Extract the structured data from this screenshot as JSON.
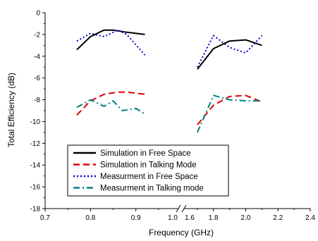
{
  "chart_data": {
    "type": "line",
    "xlabel": "Frequency (GHz)",
    "ylabel": "Total Efficiency (dB)",
    "ylim": [
      -18,
      0
    ],
    "x_axis_break": true,
    "x_segments": [
      {
        "range": [
          0.7,
          1.0
        ],
        "ticks": [
          "0.7",
          "0.8",
          "0.9",
          "1.0"
        ]
      },
      {
        "range": [
          1.6,
          2.4
        ],
        "ticks": [
          "1.6",
          "1.8",
          "2.0",
          "2.2",
          "2.4"
        ]
      }
    ],
    "y_ticks": [
      "0",
      "-2",
      "-4",
      "-6",
      "-8",
      "-10",
      "-12",
      "-14",
      "-16",
      "-18"
    ],
    "grid": false,
    "legend_position": "bottom-left",
    "series": [
      {
        "name": "Simulation in Free Space",
        "color": "#000000",
        "dash": "solid",
        "segments": [
          {
            "x": [
              0.77,
              0.8,
              0.83,
              0.85,
              0.88,
              0.92
            ],
            "y": [
              -3.4,
              -2.2,
              -1.6,
              -1.6,
              -1.8,
              -2.0
            ]
          },
          {
            "x": [
              1.7,
              1.8,
              1.9,
              2.0,
              2.1
            ],
            "y": [
              -5.2,
              -3.3,
              -2.6,
              -2.5,
              -3.0
            ]
          }
        ]
      },
      {
        "name": "Simulation in Talking Mode",
        "color": "#e00000",
        "dash": "dash",
        "segments": [
          {
            "x": [
              0.77,
              0.8,
              0.83,
              0.86,
              0.88,
              0.92
            ],
            "y": [
              -9.4,
              -8.1,
              -7.5,
              -7.3,
              -7.3,
              -7.5
            ]
          },
          {
            "x": [
              1.7,
              1.8,
              1.9,
              2.0,
              2.1
            ],
            "y": [
              -10.3,
              -8.5,
              -7.7,
              -7.6,
              -8.2
            ]
          }
        ]
      },
      {
        "name": "Measurment in Free Space",
        "color": "#0000cc",
        "dash": "dot",
        "segments": [
          {
            "x": [
              0.77,
              0.8,
              0.83,
              0.86,
              0.88,
              0.92
            ],
            "y": [
              -2.6,
              -1.9,
              -2.2,
              -1.6,
              -2.0,
              -3.9
            ]
          },
          {
            "x": [
              1.7,
              1.8,
              1.9,
              2.0,
              2.05,
              2.1
            ],
            "y": [
              -5.0,
              -2.1,
              -3.2,
              -3.7,
              -2.9,
              -2.1
            ]
          }
        ]
      },
      {
        "name": "Measurment in Talking mode",
        "color": "#008080",
        "dash": "dashdot",
        "segments": [
          {
            "x": [
              0.77,
              0.8,
              0.83,
              0.85,
              0.87,
              0.9,
              0.92
            ],
            "y": [
              -8.7,
              -8.0,
              -8.6,
              -8.1,
              -9.0,
              -8.8,
              -9.3
            ]
          },
          {
            "x": [
              1.7,
              1.8,
              1.9,
              2.0,
              2.1
            ],
            "y": [
              -11.0,
              -7.6,
              -8.0,
              -8.1,
              -8.1
            ]
          }
        ]
      }
    ]
  }
}
